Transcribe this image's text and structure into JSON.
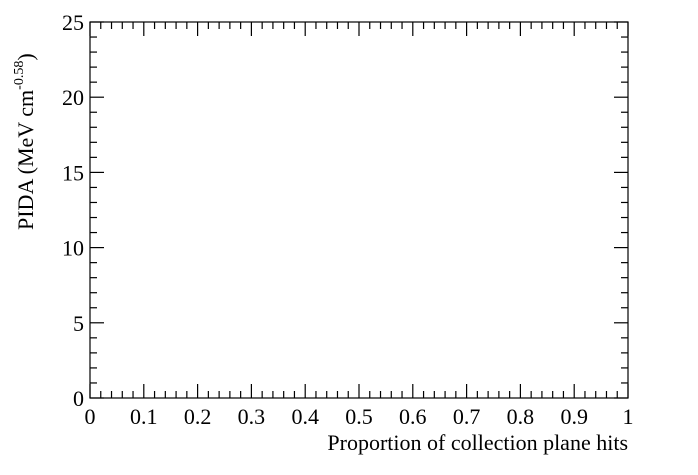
{
  "chart_data": {
    "type": "scatter",
    "title": "",
    "xlabel": "Proportion of collection plane hits",
    "ylabel_main": "PIDA (MeV cm",
    "ylabel_exponent": "-0.58",
    "ylabel_close": ")",
    "xlim": [
      0,
      1
    ],
    "ylim": [
      0,
      25
    ],
    "x_ticks": [
      0,
      0.1,
      0.2,
      0.3,
      0.4,
      0.5,
      0.6,
      0.7,
      0.8,
      0.9,
      1
    ],
    "x_tick_labels": [
      "0",
      "0.1",
      "0.2",
      "0.3",
      "0.4",
      "0.5",
      "0.6",
      "0.7",
      "0.8",
      "0.9",
      "1"
    ],
    "y_ticks": [
      0,
      5,
      10,
      15,
      20,
      25
    ],
    "y_tick_labels": [
      "0",
      "5",
      "10",
      "15",
      "20",
      "25"
    ],
    "grid": false,
    "series": []
  }
}
